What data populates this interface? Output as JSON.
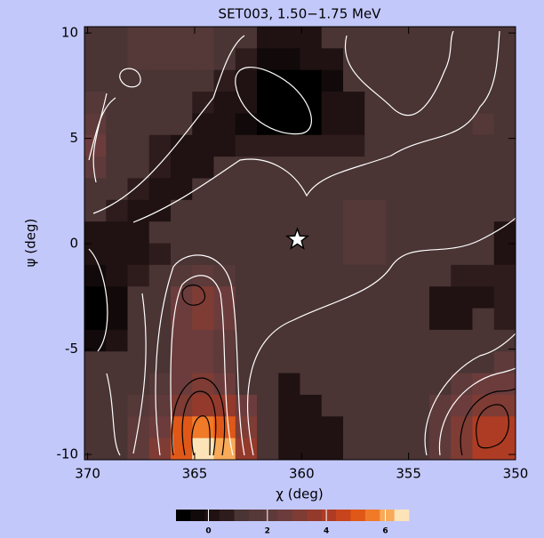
{
  "chart_data": {
    "type": "heatmap",
    "title": "SET003, 1.50−1.75 MeV",
    "x_label": "χ (deg)",
    "y_label": "ψ (deg)",
    "xlim": [
      370.15,
      350
    ],
    "ylim": [
      -10.25,
      10.3
    ],
    "xticks": [
      370,
      365,
      360,
      355,
      350
    ],
    "yticks": [
      10,
      5,
      0,
      -5,
      -10
    ],
    "z": [
      [
        1,
        1,
        1.5,
        1.5,
        1.5,
        1.5,
        1,
        1,
        0,
        0.3,
        0,
        1,
        1,
        1,
        1,
        1,
        1,
        1,
        1,
        1
      ],
      [
        1,
        1,
        1.5,
        1.5,
        1.5,
        1.5,
        1,
        0.5,
        -0.5,
        -0.5,
        0,
        0,
        1,
        1,
        1,
        1,
        1,
        1,
        1,
        1
      ],
      [
        1,
        1,
        1.3,
        1.3,
        1,
        1,
        0.5,
        0,
        -0.8,
        -1,
        -1,
        -0.5,
        1,
        1,
        1,
        1,
        1,
        1,
        1,
        1
      ],
      [
        1.5,
        1,
        1,
        1,
        1,
        0.5,
        0,
        0,
        -1,
        -1,
        -1,
        0,
        0,
        1,
        1,
        1,
        1,
        1,
        1,
        1
      ],
      [
        2,
        1,
        1,
        1,
        1,
        0,
        0,
        -0.5,
        -1,
        -1,
        -1,
        0,
        0,
        1,
        1,
        1,
        1,
        1,
        1.5,
        1
      ],
      [
        2.5,
        1,
        1,
        0.5,
        0,
        0,
        0,
        0.5,
        0.5,
        0.5,
        0.5,
        0.5,
        0.5,
        1,
        1,
        1,
        1,
        1,
        1,
        1
      ],
      [
        2,
        1,
        1,
        0.5,
        0,
        0,
        1,
        1,
        1,
        1,
        1,
        1,
        1,
        1,
        1,
        1,
        1,
        1,
        1,
        1
      ],
      [
        1,
        1,
        0.5,
        0,
        0,
        1,
        1,
        1,
        1,
        1,
        1,
        1,
        1,
        1,
        1,
        1,
        1,
        1,
        1,
        1
      ],
      [
        1,
        0.5,
        0,
        0,
        1,
        1,
        1,
        1,
        1,
        1,
        1,
        1,
        1.5,
        1.5,
        1,
        1,
        1,
        1,
        1,
        1
      ],
      [
        0,
        0,
        0,
        1,
        1,
        1,
        1,
        1,
        1,
        1,
        1,
        1,
        1.5,
        1.5,
        1,
        1,
        1,
        1,
        1,
        0
      ],
      [
        0,
        0,
        0,
        0.5,
        1,
        1,
        1,
        1,
        1,
        1,
        1,
        1,
        1.5,
        1.5,
        1,
        1,
        1,
        1,
        1,
        0
      ],
      [
        -0.5,
        0,
        0.5,
        1,
        1.5,
        2,
        1.5,
        1,
        1,
        1,
        1,
        1,
        1,
        1,
        1,
        1,
        1,
        0.5,
        0.5,
        0.5
      ],
      [
        -1,
        -0.5,
        1,
        1,
        2.5,
        3,
        2.5,
        1,
        1,
        1,
        1,
        1,
        1,
        1,
        1,
        1,
        0,
        0,
        0,
        0.5
      ],
      [
        -1,
        -0.5,
        1,
        1,
        2.5,
        3,
        2.5,
        1,
        1,
        1,
        1,
        1,
        1,
        1,
        1,
        1,
        0,
        0,
        1,
        0.5
      ],
      [
        -0.5,
        0,
        1,
        1,
        2.5,
        2.5,
        2,
        1,
        1,
        1,
        1,
        1,
        1,
        1,
        1,
        1,
        1,
        1,
        1,
        1
      ],
      [
        1,
        1,
        1,
        1,
        2.5,
        2.5,
        2,
        1,
        1,
        1,
        1,
        1,
        1,
        1,
        1,
        1,
        1,
        1,
        1,
        2
      ],
      [
        1,
        1,
        1,
        1.5,
        2.5,
        3,
        2.5,
        1,
        1,
        0,
        1,
        1,
        1,
        1,
        1,
        1,
        1,
        2,
        2.5,
        2.5
      ],
      [
        1,
        1,
        1.5,
        2,
        3,
        3.5,
        3.5,
        2.5,
        1,
        0,
        0,
        1,
        1,
        1,
        1,
        1,
        2,
        2.5,
        3,
        3
      ],
      [
        1,
        1,
        2,
        2.5,
        5,
        5.5,
        5,
        3,
        1,
        0,
        0,
        0,
        1,
        1,
        1,
        1,
        2,
        3,
        4,
        4
      ],
      [
        1,
        1,
        2,
        3,
        5,
        6.5,
        6,
        3.5,
        1,
        0,
        0,
        0,
        1,
        1,
        1,
        1,
        2,
        3,
        4,
        4
      ]
    ],
    "zlim": [
      -1.1,
      6.8
    ],
    "colorbar_ticks": [
      0,
      2,
      4,
      6
    ],
    "colormap": [
      "#000000",
      "#120a0a",
      "#201212",
      "#2e1c1c",
      "#4a3434",
      "#553838",
      "#5e3a3a",
      "#6c3c3c",
      "#7e3c34",
      "#943a2c",
      "#ae3c24",
      "#c8441c",
      "#e05818",
      "#f07a28",
      "#f8aa58",
      "#fde4b8"
    ],
    "marker": {
      "x": 360.2,
      "y": 0.2
    }
  }
}
